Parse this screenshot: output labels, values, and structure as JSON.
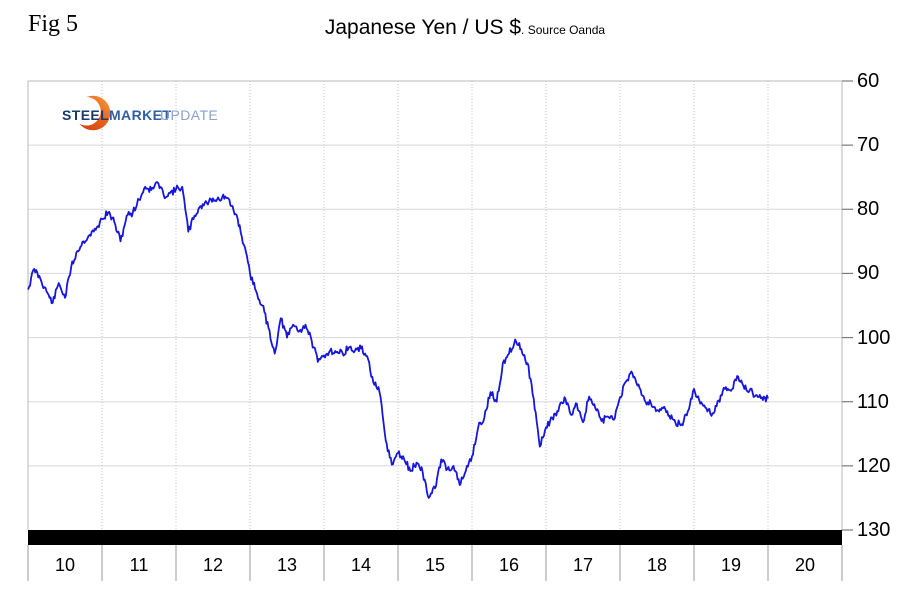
{
  "page": {
    "fig_label": "Fig 5"
  },
  "header": {
    "title": "Japanese Yen / US $",
    "separator": ".",
    "source_note": " Source Oanda"
  },
  "logo": {
    "word1": "STEEL",
    "word2": "MARKET",
    "word3": "UPDATE",
    "colors": {
      "steel": "#1b3a6b",
      "market": "#2f5fa5",
      "update": "#8aa2cf",
      "crescent_from": "#c83a10",
      "crescent_to": "#f9a23c"
    }
  },
  "chart_data": {
    "type": "line",
    "title": "Japanese Yen / US $",
    "source": "Source Oanda",
    "x_axis": {
      "labels": [
        "10",
        "11",
        "12",
        "13",
        "14",
        "15",
        "16",
        "17",
        "18",
        "19",
        "20"
      ],
      "start_year": 2010,
      "unit": "year"
    },
    "y_axis": {
      "position": "right",
      "inverted": true,
      "min": 60,
      "max": 130,
      "ticks": [
        60,
        70,
        80,
        90,
        100,
        110,
        120,
        130
      ]
    },
    "grid": {
      "horizontal": true,
      "vertical_dotted": true
    },
    "series": [
      {
        "name": "Japanese Yen per US Dollar",
        "color": "#1616dd",
        "start": "2010-01",
        "interval": "monthly",
        "values": [
          92.5,
          89.3,
          90.8,
          92.8,
          94.6,
          91.5,
          93.8,
          89.0,
          86.5,
          85.0,
          84.0,
          83.2,
          81.5,
          80.5,
          82.0,
          85.0,
          81.0,
          80.5,
          78.5,
          76.5,
          77.0,
          75.8,
          77.8,
          77.5,
          76.9,
          76.5,
          83.5,
          81.0,
          79.5,
          79.0,
          78.3,
          78.5,
          78.0,
          79.5,
          81.5,
          85.5,
          90.0,
          92.8,
          95.0,
          98.5,
          102.5,
          97.0,
          100.0,
          98.0,
          99.0,
          98.0,
          100.5,
          103.8,
          102.8,
          102.0,
          102.3,
          102.4,
          101.6,
          102.1,
          101.7,
          102.9,
          107.0,
          108.5,
          116.0,
          119.8,
          118.0,
          119.0,
          120.8,
          119.5,
          121.0,
          125.0,
          123.5,
          119.0,
          120.5,
          120.0,
          123.0,
          120.8,
          118.5,
          114.0,
          112.5,
          108.5,
          110.0,
          104.0,
          102.5,
          100.3,
          101.8,
          104.0,
          109.5,
          117.0,
          114.0,
          112.5,
          111.5,
          109.3,
          112.0,
          110.3,
          113.2,
          109.2,
          111.0,
          113.0,
          112.3,
          112.8,
          109.3,
          106.8,
          105.5,
          107.3,
          109.8,
          110.2,
          111.3,
          111.0,
          112.2,
          113.3,
          113.5,
          111.5,
          108.0,
          110.3,
          111.0,
          111.8,
          109.8,
          108.0,
          108.3,
          106.0,
          107.5,
          108.3,
          109.0,
          109.3,
          109.5
        ]
      }
    ],
    "annotations": {
      "bottom_bar": {
        "color": "#000000",
        "at_value": 130,
        "description": "thick solid black bar across plot bottom at the 130 level"
      }
    }
  }
}
